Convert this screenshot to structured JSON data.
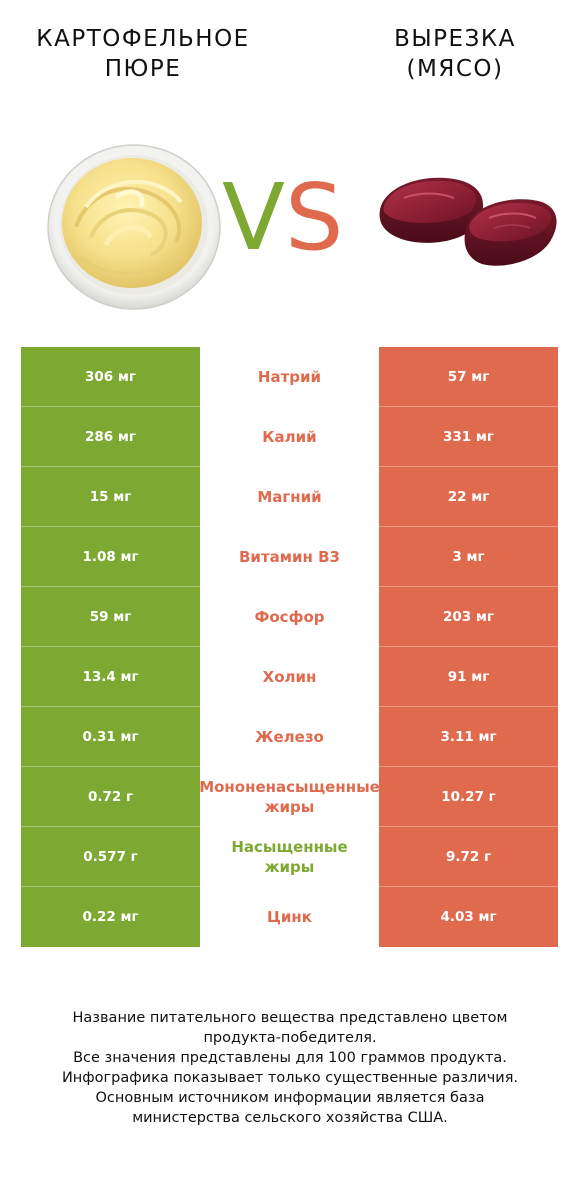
{
  "left_title": [
    "КАРТОФЕЛЬНОЕ",
    "ПЮРЕ"
  ],
  "right_title": [
    "ВЫРЕЗКА",
    "(МЯСО)"
  ],
  "vs": {
    "v": "V",
    "s": "S"
  },
  "colors": {
    "green": "#7da832",
    "red": "#e06a4e"
  },
  "left_image": "mashed-potato-bowl",
  "right_image": "beef-tenderloin-steaks",
  "rows": [
    {
      "left": "306 мг",
      "name": [
        "Натрий"
      ],
      "right": "57 мг",
      "winner": "red"
    },
    {
      "left": "286 мг",
      "name": [
        "Калий"
      ],
      "right": "331 мг",
      "winner": "red"
    },
    {
      "left": "15 мг",
      "name": [
        "Магний"
      ],
      "right": "22 мг",
      "winner": "red"
    },
    {
      "left": "1.08 мг",
      "name": [
        "Витамин B3"
      ],
      "right": "3 мг",
      "winner": "red"
    },
    {
      "left": "59 мг",
      "name": [
        "Фосфор"
      ],
      "right": "203 мг",
      "winner": "red"
    },
    {
      "left": "13.4 мг",
      "name": [
        "Холин"
      ],
      "right": "91 мг",
      "winner": "red"
    },
    {
      "left": "0.31 мг",
      "name": [
        "Железо"
      ],
      "right": "3.11 мг",
      "winner": "red"
    },
    {
      "left": "0.72 г",
      "name": [
        "Мононенасыщенные",
        "жиры"
      ],
      "right": "10.27 г",
      "winner": "red"
    },
    {
      "left": "0.577 г",
      "name": [
        "Насыщенные",
        "жиры"
      ],
      "right": "9.72 г",
      "winner": "green"
    },
    {
      "left": "0.22 мг",
      "name": [
        "Цинк"
      ],
      "right": "4.03 мг",
      "winner": "red"
    }
  ],
  "footer": [
    "Название питательного вещества представлено цветом",
    "продукта-победителя.",
    "Все значения представлены для 100 граммов продукта.",
    "Инфографика показывает только существенные различия.",
    "Основным источником информации является база",
    "министерства сельского хозяйства США."
  ]
}
